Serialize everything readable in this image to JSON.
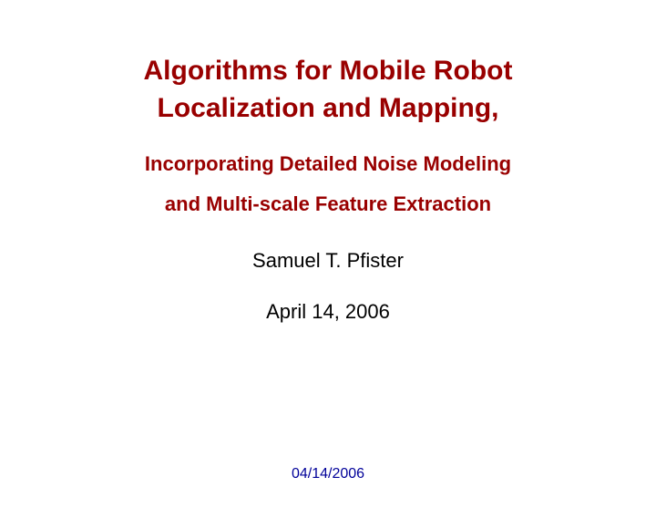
{
  "colors": {
    "title": "#990000",
    "subtitle": "#990000",
    "body": "#000000",
    "footer": "#000099",
    "background": "#ffffff"
  },
  "typography": {
    "title_fontsize_pt": 30,
    "title_weight": 700,
    "subtitle_fontsize_pt": 22,
    "subtitle_weight": 700,
    "body_fontsize_pt": 22,
    "body_weight": 400,
    "footer_fontsize_pt": 16,
    "font_family": "Helvetica, Arial, sans-serif"
  },
  "title": {
    "line1": "Algorithms for Mobile Robot",
    "line2": "Localization and Mapping,"
  },
  "subtitle": {
    "line1": "Incorporating Detailed Noise Modeling",
    "line2": "and Multi-scale Feature Extraction"
  },
  "author": "Samuel T. Pfister",
  "date": "April 14, 2006",
  "footer_date": "04/14/2006"
}
